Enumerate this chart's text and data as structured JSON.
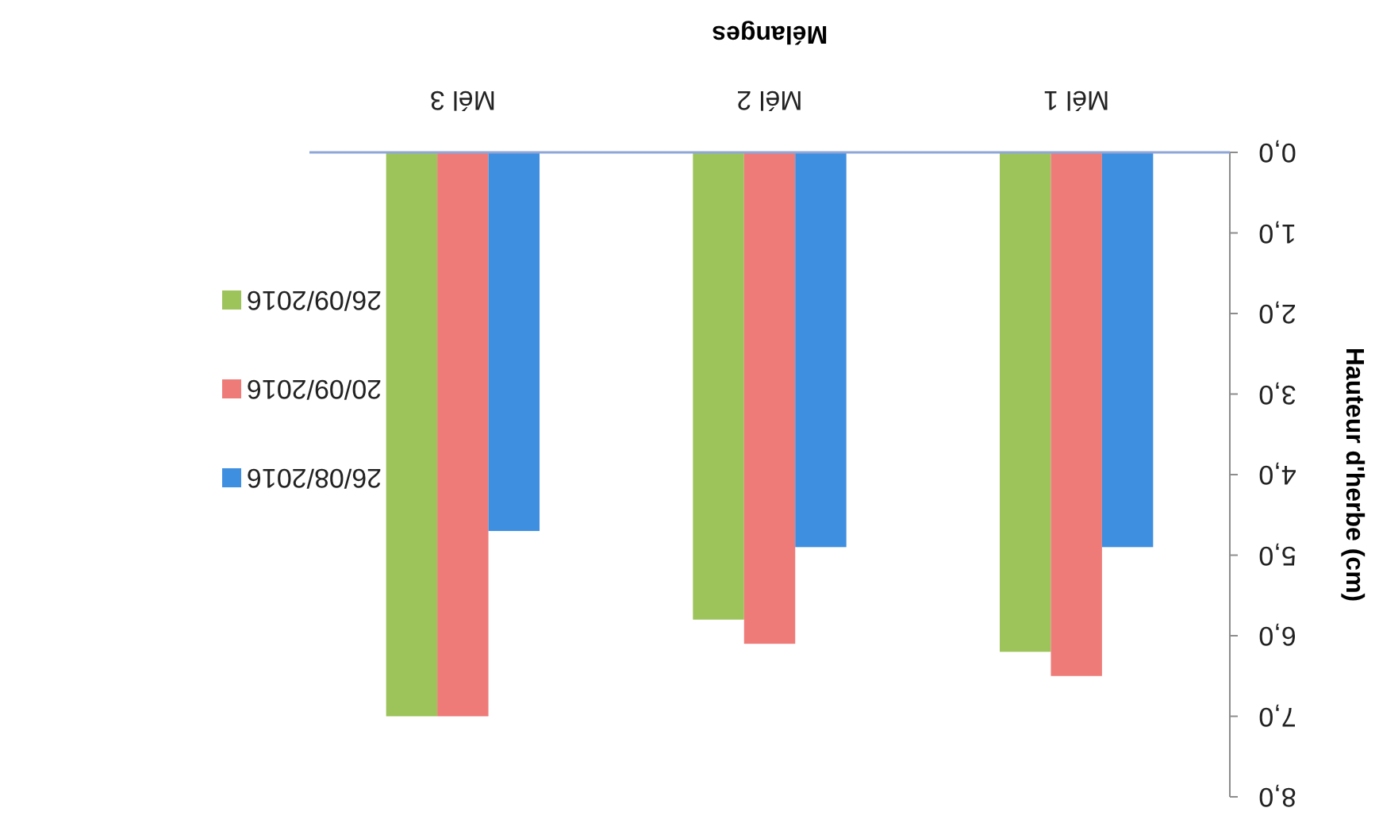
{
  "chart_data": {
    "type": "bar",
    "xlabel": "Mélanges",
    "ylabel": "Hauteur d'herbe (cm)",
    "categories": [
      "Mél 3",
      "Mél 2",
      "Mél 1"
    ],
    "series": [
      {
        "name": "26/09/2016",
        "color": "#9dc35b",
        "values": [
          7.0,
          5.8,
          6.2
        ]
      },
      {
        "name": "20/09/2016",
        "color": "#ee7b78",
        "values": [
          7.0,
          6.1,
          6.5
        ]
      },
      {
        "name": "26/08/2016",
        "color": "#3f8fe0",
        "values": [
          4.7,
          4.9,
          4.9
        ]
      }
    ],
    "ylim": [
      8,
      0
    ],
    "yticks": [
      {
        "value": 0,
        "label": "0,0"
      },
      {
        "value": 1,
        "label": "1,0"
      },
      {
        "value": 2,
        "label": "2,0"
      },
      {
        "value": 3,
        "label": "3,0"
      },
      {
        "value": 4,
        "label": "4,0"
      },
      {
        "value": 5,
        "label": "5,0"
      },
      {
        "value": 6,
        "label": "6,0"
      },
      {
        "value": 7,
        "label": "7,0"
      },
      {
        "value": 8,
        "label": "8,0"
      }
    ],
    "grid": false,
    "legend": "left"
  }
}
